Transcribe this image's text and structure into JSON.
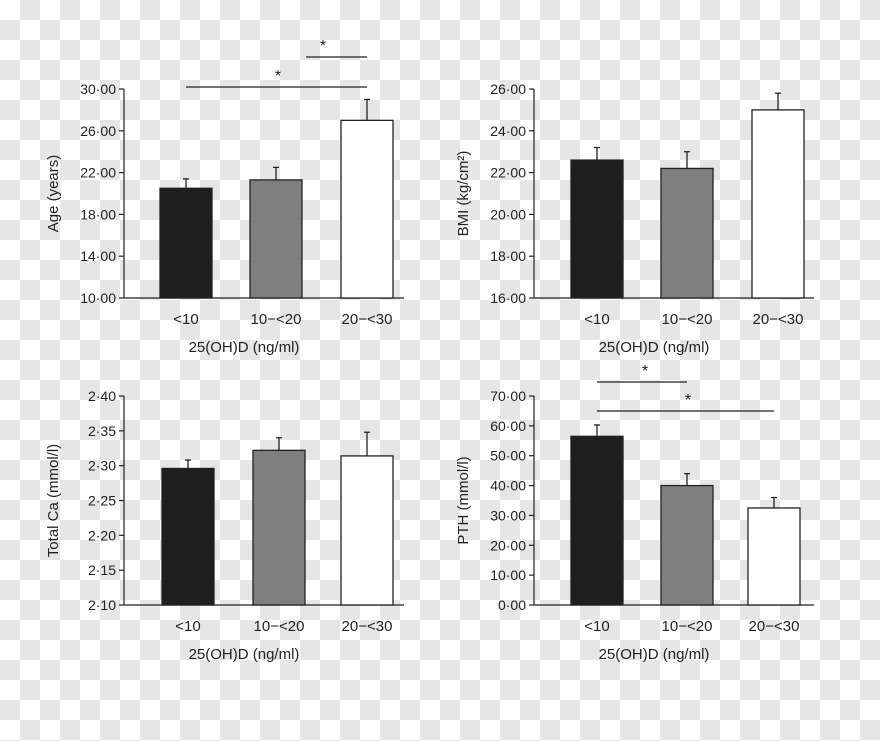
{
  "chart_data": [
    {
      "type": "bar",
      "categories": [
        "<10",
        "10−<20",
        "20−<30"
      ],
      "values": [
        20.5,
        21.3,
        27.0
      ],
      "errors": [
        0.9,
        1.2,
        2.0
      ],
      "bar_colors": [
        "#1f1f1f",
        "#7f7f7f",
        "#ffffff"
      ],
      "ylim": [
        10,
        30
      ],
      "yticks": [
        "10·00",
        "14·00",
        "18·00",
        "22·00",
        "26·00",
        "30·00"
      ],
      "ytick_values": [
        10,
        14,
        18,
        22,
        26,
        30
      ],
      "ylabel": "Age (years)",
      "xlabel": "25(OH)D (ng/ml)",
      "significance": [
        {
          "from": 0,
          "to": 2,
          "label": "*"
        },
        {
          "from": 1,
          "to": 2,
          "label": "*"
        }
      ]
    },
    {
      "type": "bar",
      "categories": [
        "<10",
        "10−<20",
        "20−<30"
      ],
      "values": [
        22.6,
        22.2,
        25.0
      ],
      "errors": [
        0.6,
        0.8,
        0.8
      ],
      "bar_colors": [
        "#1f1f1f",
        "#7f7f7f",
        "#ffffff"
      ],
      "ylim": [
        16,
        26
      ],
      "yticks": [
        "16·00",
        "18·00",
        "20·00",
        "22·00",
        "24·00",
        "26·00"
      ],
      "ytick_values": [
        16,
        18,
        20,
        22,
        24,
        26
      ],
      "ylabel": "BMI (kg/cm²)",
      "xlabel": "25(OH)D (ng/ml)",
      "significance": []
    },
    {
      "type": "bar",
      "categories": [
        "<10",
        "10−<20",
        "20−<30"
      ],
      "values": [
        2.296,
        2.322,
        2.314
      ],
      "errors": [
        0.012,
        0.018,
        0.034
      ],
      "bar_colors": [
        "#1f1f1f",
        "#7f7f7f",
        "#ffffff"
      ],
      "ylim": [
        2.1,
        2.4
      ],
      "yticks": [
        "2·10",
        "2·15",
        "2·20",
        "2·25",
        "2·30",
        "2·35",
        "2·40"
      ],
      "ytick_values": [
        2.1,
        2.15,
        2.2,
        2.25,
        2.3,
        2.35,
        2.4
      ],
      "ylabel": "Total Ca (mmol/l)",
      "xlabel": "25(OH)D (ng/ml)",
      "significance": []
    },
    {
      "type": "bar",
      "categories": [
        "<10",
        "10−<20",
        "20−<30"
      ],
      "values": [
        56.5,
        40.0,
        32.5
      ],
      "errors": [
        3.8,
        4.0,
        3.5
      ],
      "bar_colors": [
        "#1f1f1f",
        "#7f7f7f",
        "#ffffff"
      ],
      "ylim": [
        0,
        70
      ],
      "yticks": [
        "0·00",
        "10·00",
        "20·00",
        "30·00",
        "40·00",
        "50·00",
        "60·00",
        "70·00"
      ],
      "ytick_values": [
        0,
        10,
        20,
        30,
        40,
        50,
        60,
        70
      ],
      "ylabel": "PTH (mmol/l)",
      "xlabel": "25(OH)D (ng/ml)",
      "significance": [
        {
          "from": 0,
          "to": 1,
          "label": "*"
        },
        {
          "from": 0,
          "to": 2,
          "label": "*"
        }
      ]
    }
  ]
}
